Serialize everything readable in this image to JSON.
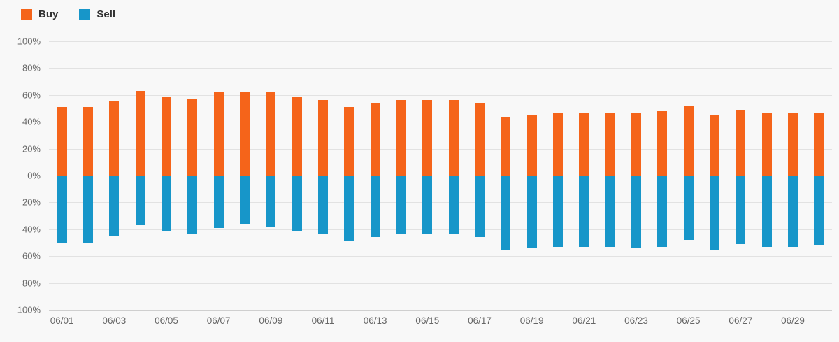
{
  "legend": {
    "items": [
      {
        "label": "Buy"
      },
      {
        "label": "Sell"
      }
    ]
  },
  "colors": {
    "background": "#f8f8f8",
    "gridline": "#e2e2e2",
    "baseline": "#cfcfcf",
    "axis_text": "#666666",
    "legend_text": "#333333",
    "buy": "#f5641a",
    "sell": "#1796c9"
  },
  "chart_data": {
    "type": "bar",
    "variant": "diverging",
    "title": "",
    "xlabel": "",
    "ylabel": "",
    "unit": "%",
    "ylim": [
      100,
      -100
    ],
    "grid": true,
    "legend_position": "top-left",
    "categories": [
      "06/01",
      "06/02",
      "06/03",
      "06/04",
      "06/05",
      "06/06",
      "06/07",
      "06/08",
      "06/09",
      "06/10",
      "06/11",
      "06/12",
      "06/13",
      "06/14",
      "06/15",
      "06/16",
      "06/17",
      "06/18",
      "06/19",
      "06/20",
      "06/21",
      "06/22",
      "06/23",
      "06/24",
      "06/25",
      "06/26",
      "06/27",
      "06/28",
      "06/29",
      "06/30"
    ],
    "series": [
      {
        "name": "Buy",
        "color": "#f5641a",
        "direction": "up",
        "values": [
          51,
          51,
          55,
          63,
          59,
          57,
          62,
          62,
          62,
          59,
          56,
          51,
          54,
          56,
          56,
          56,
          54,
          44,
          45,
          47,
          47,
          47,
          47,
          48,
          52,
          45,
          49,
          47,
          47,
          47
        ]
      },
      {
        "name": "Sell",
        "color": "#1796c9",
        "direction": "down",
        "values": [
          50,
          50,
          45,
          37,
          41,
          43,
          39,
          36,
          38,
          41,
          44,
          49,
          46,
          43,
          44,
          44,
          46,
          55,
          54,
          53,
          53,
          53,
          54,
          53,
          48,
          55,
          51,
          53,
          53,
          52
        ]
      }
    ],
    "y_tick_labels": [
      "100%",
      "80%",
      "60%",
      "40%",
      "20%",
      "0%",
      "20%",
      "40%",
      "60%",
      "80%",
      "100%"
    ],
    "x_tick_every": 2
  }
}
